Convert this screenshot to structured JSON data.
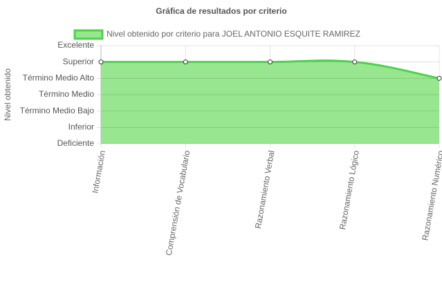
{
  "chart_data": {
    "type": "area",
    "title": "Gráfica de resultados por criterio",
    "ylabel": "Nivel obtenido",
    "categories": [
      "Información",
      "Comprensión de Vocabulario",
      "Razonamiento Verbal",
      "Razonamiento Lógico",
      "Razonamiento Numérico"
    ],
    "series": [
      {
        "name": "Nivel obtenido por criterio para JOEL ANTONIO ESQUITE RAMIREZ",
        "color": "#4cd24c",
        "fill": "#98e690",
        "values": [
          5,
          5,
          5,
          5,
          4
        ]
      }
    ],
    "ylim": [
      0,
      6
    ],
    "yticks": [
      {
        "value": 0,
        "label": "Deficiente"
      },
      {
        "value": 1,
        "label": "Inferior"
      },
      {
        "value": 2,
        "label": "Término Medio Bajo"
      },
      {
        "value": 3,
        "label": "Término Medio"
      },
      {
        "value": 4,
        "label": "Término Medio Alto"
      },
      {
        "value": 5,
        "label": "Superior"
      },
      {
        "value": 6,
        "label": "Excelente"
      }
    ],
    "grid": true,
    "legend": "top"
  }
}
